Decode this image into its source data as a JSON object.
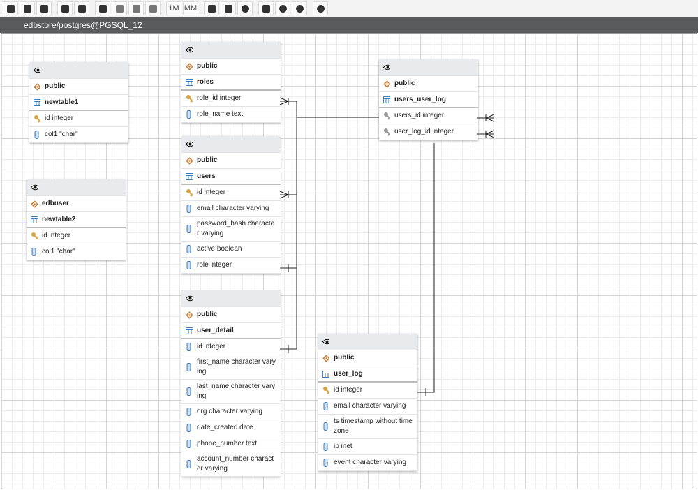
{
  "toolbar": {
    "buttons": [
      "1M",
      "MM"
    ]
  },
  "connection": "edbstore/postgres@PGSQL_12",
  "tables": [
    {
      "schema": "public",
      "name": "newtable1",
      "columns": [
        "id integer",
        "col1 \"char\""
      ]
    },
    {
      "schema": "edbuser",
      "name": "newtable2",
      "columns": [
        "id integer",
        "col1 \"char\""
      ]
    },
    {
      "schema": "public",
      "name": "roles",
      "columns": [
        "role_id integer",
        "role_name text"
      ]
    },
    {
      "schema": "public",
      "name": "users",
      "columns": [
        "id integer",
        "email character varying",
        "password_hash character varying",
        "active boolean",
        "role integer"
      ]
    },
    {
      "schema": "public",
      "name": "user_detail",
      "columns": [
        "id integer",
        "first_name character varying",
        "last_name character varying",
        "org character varying",
        "date_created date",
        "phone_number text",
        "account_number character varying"
      ]
    },
    {
      "schema": "public",
      "name": "users_user_log",
      "columns": [
        "users_id integer",
        "user_log_id integer"
      ]
    },
    {
      "schema": "public",
      "name": "user_log",
      "columns": [
        "id integer",
        "email character varying",
        "ts timestamp without time zone",
        "ip inet",
        "event character varying"
      ]
    }
  ]
}
